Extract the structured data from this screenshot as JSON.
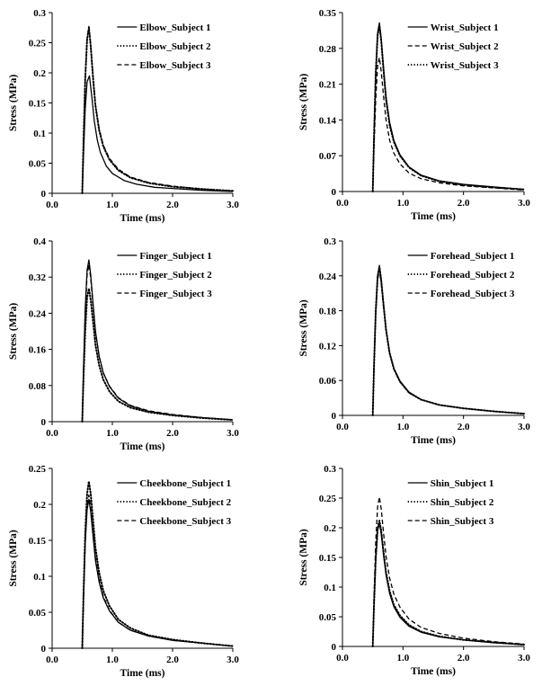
{
  "chart_data": [
    {
      "type": "line",
      "xlabel": "Time (ms)",
      "ylabel": "Stress (MPa)",
      "xlim": [
        0,
        3.0
      ],
      "ylim": [
        0,
        0.3
      ],
      "xticks": [
        "0.0",
        "1.0",
        "2.0",
        "3.0"
      ],
      "yticks": [
        "0",
        "0.05",
        "0.1",
        "0.15",
        "0.2",
        "0.25",
        "0.3"
      ],
      "legend": "top-right",
      "grid": false,
      "series": [
        {
          "name": "Elbow_Subject 1",
          "style": "solid",
          "x": [
            0.5,
            0.52,
            0.55,
            0.58,
            0.62,
            0.66,
            0.7,
            0.75,
            0.8,
            0.9,
            1.0,
            1.2,
            1.4,
            1.7,
            2.0,
            2.5,
            3.0
          ],
          "values": [
            0,
            0.06,
            0.14,
            0.185,
            0.195,
            0.16,
            0.12,
            0.088,
            0.068,
            0.045,
            0.033,
            0.021,
            0.015,
            0.01,
            0.008,
            0.005,
            0.003
          ]
        },
        {
          "name": "Elbow_Subject 2",
          "style": "dotted",
          "x": [
            0.5,
            0.52,
            0.55,
            0.58,
            0.61,
            0.64,
            0.68,
            0.72,
            0.78,
            0.85,
            0.95,
            1.1,
            1.3,
            1.6,
            2.0,
            2.5,
            3.0
          ],
          "values": [
            0,
            0.08,
            0.19,
            0.255,
            0.275,
            0.245,
            0.19,
            0.145,
            0.105,
            0.078,
            0.056,
            0.038,
            0.026,
            0.017,
            0.011,
            0.007,
            0.004
          ]
        },
        {
          "name": "Elbow_Subject 3",
          "style": "dashed",
          "x": [
            0.5,
            0.52,
            0.55,
            0.58,
            0.61,
            0.64,
            0.68,
            0.72,
            0.78,
            0.85,
            0.95,
            1.1,
            1.3,
            1.6,
            2.0,
            2.5,
            3.0
          ],
          "values": [
            0,
            0.08,
            0.19,
            0.257,
            0.277,
            0.247,
            0.192,
            0.147,
            0.107,
            0.08,
            0.058,
            0.04,
            0.027,
            0.018,
            0.012,
            0.007,
            0.004
          ]
        }
      ]
    },
    {
      "type": "line",
      "xlabel": "Time (ms)",
      "ylabel": "Stress (MPa)",
      "xlim": [
        0,
        3.0
      ],
      "ylim": [
        0,
        0.35
      ],
      "xticks": [
        "0.0",
        "1.0",
        "2.0",
        "3.0"
      ],
      "yticks": [
        "0",
        "0.07",
        "0.14",
        "0.21",
        "0.28",
        "0.35"
      ],
      "legend": "top-right",
      "grid": false,
      "series": [
        {
          "name": "Wrist_Subject 1",
          "style": "solid",
          "x": [
            0.5,
            0.52,
            0.55,
            0.58,
            0.61,
            0.64,
            0.68,
            0.72,
            0.78,
            0.85,
            0.95,
            1.1,
            1.3,
            1.6,
            2.0,
            2.5,
            3.0
          ],
          "values": [
            0,
            0.1,
            0.23,
            0.31,
            0.33,
            0.3,
            0.24,
            0.185,
            0.135,
            0.1,
            0.072,
            0.048,
            0.032,
            0.021,
            0.014,
            0.009,
            0.004
          ]
        },
        {
          "name": "Wrist_Subject 2",
          "style": "dashed",
          "x": [
            0.5,
            0.52,
            0.55,
            0.58,
            0.61,
            0.64,
            0.68,
            0.72,
            0.78,
            0.85,
            0.95,
            1.1,
            1.3,
            1.6,
            2.0,
            2.5,
            3.0
          ],
          "values": [
            0,
            0.08,
            0.18,
            0.245,
            0.262,
            0.235,
            0.185,
            0.14,
            0.1,
            0.075,
            0.054,
            0.036,
            0.025,
            0.017,
            0.011,
            0.007,
            0.003
          ]
        },
        {
          "name": "Wrist_Subject 3",
          "style": "dotted",
          "x": [
            0.5,
            0.52,
            0.55,
            0.58,
            0.61,
            0.64,
            0.68,
            0.72,
            0.78,
            0.85,
            0.95,
            1.1,
            1.3,
            1.6,
            2.0,
            2.5,
            3.0
          ],
          "values": [
            0,
            0.1,
            0.23,
            0.305,
            0.325,
            0.295,
            0.235,
            0.18,
            0.13,
            0.097,
            0.07,
            0.047,
            0.031,
            0.02,
            0.013,
            0.008,
            0.004
          ]
        }
      ]
    },
    {
      "type": "line",
      "xlabel": "Time (ms)",
      "ylabel": "Stress (MPa)",
      "xlim": [
        0,
        3.0
      ],
      "ylim": [
        0,
        0.4
      ],
      "xticks": [
        "0.0",
        "1.0",
        "2.0",
        "3.0"
      ],
      "yticks": [
        "0",
        "0.08",
        "0.16",
        "0.24",
        "0.32",
        "0.4"
      ],
      "legend": "top-right",
      "grid": false,
      "series": [
        {
          "name": "Finger_Subject 1",
          "style": "solid",
          "x": [
            0.5,
            0.52,
            0.55,
            0.58,
            0.61,
            0.64,
            0.68,
            0.72,
            0.78,
            0.85,
            0.95,
            1.1,
            1.3,
            1.6,
            2.0,
            2.5,
            3.0
          ],
          "values": [
            0,
            0.11,
            0.25,
            0.335,
            0.358,
            0.325,
            0.26,
            0.2,
            0.145,
            0.108,
            0.078,
            0.052,
            0.035,
            0.023,
            0.015,
            0.009,
            0.004
          ]
        },
        {
          "name": "Finger_Subject 2",
          "style": "dotted",
          "x": [
            0.5,
            0.52,
            0.55,
            0.58,
            0.61,
            0.64,
            0.68,
            0.72,
            0.78,
            0.85,
            0.95,
            1.1,
            1.3,
            1.6,
            2.0,
            2.5,
            3.0
          ],
          "values": [
            0,
            0.09,
            0.2,
            0.275,
            0.295,
            0.27,
            0.22,
            0.17,
            0.125,
            0.093,
            0.067,
            0.045,
            0.031,
            0.021,
            0.014,
            0.008,
            0.004
          ]
        },
        {
          "name": "Finger_Subject 3",
          "style": "dashed",
          "x": [
            0.5,
            0.52,
            0.55,
            0.58,
            0.61,
            0.64,
            0.68,
            0.72,
            0.78,
            0.85,
            0.95,
            1.1,
            1.3,
            1.6,
            2.0,
            2.5,
            3.0
          ],
          "values": [
            0,
            0.1,
            0.24,
            0.325,
            0.348,
            0.318,
            0.256,
            0.198,
            0.145,
            0.108,
            0.079,
            0.053,
            0.036,
            0.024,
            0.016,
            0.009,
            0.004
          ]
        }
      ]
    },
    {
      "type": "line",
      "xlabel": "Time (ms)",
      "ylabel": "Stress (MPa)",
      "xlim": [
        0,
        3.0
      ],
      "ylim": [
        0,
        0.3
      ],
      "xticks": [
        "0.0",
        "1.0",
        "2.0",
        "3.0"
      ],
      "yticks": [
        "0",
        "0.06",
        "0.12",
        "0.18",
        "0.24",
        "0.3"
      ],
      "legend": "top-right",
      "grid": false,
      "series": [
        {
          "name": "Forehead_Subject 1",
          "style": "solid",
          "x": [
            0.5,
            0.52,
            0.55,
            0.58,
            0.61,
            0.64,
            0.68,
            0.72,
            0.78,
            0.85,
            0.95,
            1.1,
            1.3,
            1.6,
            2.0,
            2.5,
            3.0
          ],
          "values": [
            0,
            0.08,
            0.18,
            0.24,
            0.258,
            0.235,
            0.19,
            0.148,
            0.108,
            0.081,
            0.059,
            0.04,
            0.027,
            0.018,
            0.012,
            0.007,
            0.003
          ]
        },
        {
          "name": "Forehead_Subject 2",
          "style": "dotted",
          "x": [
            0.5,
            0.52,
            0.55,
            0.58,
            0.61,
            0.64,
            0.68,
            0.72,
            0.78,
            0.85,
            0.95,
            1.1,
            1.3,
            1.6,
            2.0,
            2.5,
            3.0
          ],
          "values": [
            0,
            0.079,
            0.178,
            0.238,
            0.255,
            0.232,
            0.188,
            0.147,
            0.107,
            0.08,
            0.058,
            0.039,
            0.027,
            0.018,
            0.012,
            0.007,
            0.003
          ]
        },
        {
          "name": "Forehead_Subject 3",
          "style": "dashed",
          "x": [
            0.5,
            0.52,
            0.55,
            0.58,
            0.61,
            0.64,
            0.68,
            0.72,
            0.78,
            0.85,
            0.95,
            1.1,
            1.3,
            1.6,
            2.0,
            2.5,
            3.0
          ],
          "values": [
            0,
            0.077,
            0.174,
            0.233,
            0.25,
            0.228,
            0.186,
            0.146,
            0.107,
            0.08,
            0.058,
            0.039,
            0.027,
            0.018,
            0.012,
            0.007,
            0.003
          ]
        }
      ]
    },
    {
      "type": "line",
      "xlabel": "Time (ms)",
      "ylabel": "Stress (MPa)",
      "xlim": [
        0,
        3.0
      ],
      "ylim": [
        0,
        0.25
      ],
      "xticks": [
        "0.0",
        "1.0",
        "2.0",
        "3.0"
      ],
      "yticks": [
        "0",
        "0.05",
        "0.1",
        "0.15",
        "0.2",
        "0.25"
      ],
      "legend": "top-right",
      "grid": false,
      "series": [
        {
          "name": "Cheekbone_Subject 1",
          "style": "solid",
          "x": [
            0.5,
            0.52,
            0.55,
            0.58,
            0.61,
            0.64,
            0.68,
            0.72,
            0.78,
            0.85,
            0.95,
            1.1,
            1.3,
            1.6,
            2.0,
            2.5,
            3.0
          ],
          "values": [
            0,
            0.065,
            0.145,
            0.193,
            0.207,
            0.19,
            0.155,
            0.122,
            0.092,
            0.07,
            0.052,
            0.036,
            0.025,
            0.017,
            0.011,
            0.007,
            0.003
          ]
        },
        {
          "name": "Cheekbone_Subject 2",
          "style": "dotted",
          "x": [
            0.5,
            0.52,
            0.55,
            0.58,
            0.61,
            0.64,
            0.68,
            0.72,
            0.78,
            0.85,
            0.95,
            1.1,
            1.3,
            1.6,
            2.0,
            2.5,
            3.0
          ],
          "values": [
            0,
            0.07,
            0.16,
            0.215,
            0.232,
            0.215,
            0.177,
            0.14,
            0.105,
            0.08,
            0.059,
            0.04,
            0.028,
            0.018,
            0.012,
            0.007,
            0.003
          ]
        },
        {
          "name": "Cheekbone_Subject 3",
          "style": "dashed",
          "x": [
            0.5,
            0.52,
            0.55,
            0.58,
            0.61,
            0.64,
            0.68,
            0.72,
            0.78,
            0.85,
            0.95,
            1.1,
            1.3,
            1.6,
            2.0,
            2.5,
            3.0
          ],
          "values": [
            0,
            0.066,
            0.148,
            0.198,
            0.213,
            0.196,
            0.16,
            0.126,
            0.095,
            0.072,
            0.053,
            0.036,
            0.025,
            0.017,
            0.011,
            0.007,
            0.003
          ]
        }
      ]
    },
    {
      "type": "line",
      "xlabel": "Time (ms)",
      "ylabel": "Stress (MPa)",
      "xlim": [
        0,
        3.0
      ],
      "ylim": [
        0,
        0.3
      ],
      "xticks": [
        "0.0",
        "1.0",
        "2.0",
        "3.0"
      ],
      "yticks": [
        "0",
        "0.05",
        "0.1",
        "0.15",
        "0.2",
        "0.25",
        "0.3"
      ],
      "legend": "top-right",
      "grid": false,
      "series": [
        {
          "name": "Shin_Subject 1",
          "style": "solid",
          "x": [
            0.5,
            0.52,
            0.55,
            0.58,
            0.61,
            0.64,
            0.68,
            0.72,
            0.78,
            0.85,
            0.95,
            1.1,
            1.3,
            1.6,
            2.0,
            2.5,
            3.0
          ],
          "values": [
            0,
            0.065,
            0.145,
            0.195,
            0.208,
            0.19,
            0.153,
            0.12,
            0.089,
            0.067,
            0.049,
            0.034,
            0.024,
            0.016,
            0.011,
            0.006,
            0.003
          ]
        },
        {
          "name": "Shin_Subject 2",
          "style": "dotted",
          "x": [
            0.5,
            0.52,
            0.55,
            0.58,
            0.61,
            0.64,
            0.68,
            0.72,
            0.78,
            0.85,
            0.95,
            1.1,
            1.3,
            1.6,
            2.0,
            2.5,
            3.0
          ],
          "values": [
            0,
            0.066,
            0.148,
            0.198,
            0.212,
            0.195,
            0.158,
            0.125,
            0.093,
            0.07,
            0.052,
            0.036,
            0.025,
            0.017,
            0.011,
            0.007,
            0.003
          ]
        },
        {
          "name": "Shin_Subject 3",
          "style": "dashed",
          "x": [
            0.5,
            0.52,
            0.55,
            0.58,
            0.61,
            0.64,
            0.68,
            0.72,
            0.78,
            0.85,
            0.95,
            1.1,
            1.3,
            1.6,
            2.0,
            2.5,
            3.0
          ],
          "values": [
            0,
            0.078,
            0.175,
            0.235,
            0.252,
            0.232,
            0.19,
            0.152,
            0.115,
            0.088,
            0.066,
            0.046,
            0.032,
            0.022,
            0.014,
            0.008,
            0.004
          ]
        }
      ]
    }
  ]
}
